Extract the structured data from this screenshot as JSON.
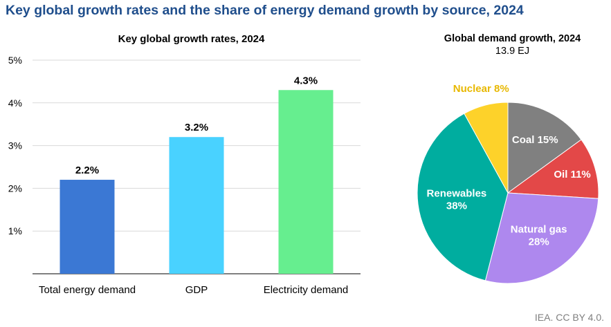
{
  "header": {
    "title": "Key global growth rates and the share of energy demand growth by source, 2024",
    "source": "IEA. CC BY 4.0."
  },
  "chart_data": [
    {
      "type": "bar",
      "title": "Key global growth rates, 2024",
      "categories": [
        "Total energy demand",
        "GDP",
        "Electricity demand"
      ],
      "values": [
        2.2,
        3.2,
        4.3
      ],
      "data_labels": [
        "2.2%",
        "3.2%",
        "4.3%"
      ],
      "colors": [
        "#3b78d4",
        "#49d2ff",
        "#66ee8f"
      ],
      "ylim": [
        0,
        5
      ],
      "yticks": [
        1,
        2,
        3,
        4,
        5
      ],
      "ytick_labels": [
        "1%",
        "2%",
        "3%",
        "4%",
        "5%"
      ],
      "grid": true
    },
    {
      "type": "pie",
      "title": "Global demand growth, 2024",
      "subtitle": "13.9 EJ",
      "slices": [
        {
          "name": "Coal",
          "value": 15,
          "label": "Coal 15%",
          "color": "#808080",
          "label_color": "#ffffff"
        },
        {
          "name": "Oil",
          "value": 11,
          "label": "Oil 11%",
          "color": "#e34848",
          "label_color": "#ffffff"
        },
        {
          "name": "Natural gas",
          "value": 28,
          "label": "Natural gas\n28%",
          "color": "#ae88ee",
          "label_color": "#ffffff"
        },
        {
          "name": "Renewables",
          "value": 38,
          "label": "Renewables\n38%",
          "color": "#00ad9f",
          "label_color": "#ffffff"
        },
        {
          "name": "Nuclear",
          "value": 8,
          "label": "Nuclear 8%",
          "color": "#fdd22a",
          "label_color": "#e8b800"
        }
      ]
    }
  ]
}
